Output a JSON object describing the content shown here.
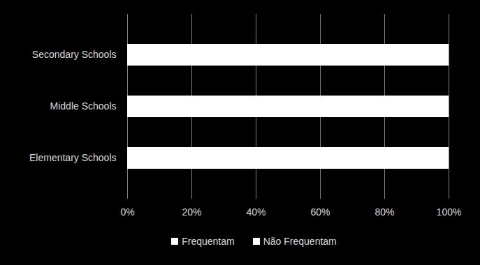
{
  "chart_data": {
    "type": "bar",
    "orientation": "horizontal",
    "stacked": true,
    "grid": true,
    "categories": [
      "Secondary Schools",
      "Middle Schools",
      "Elementary Schools"
    ],
    "series": [
      {
        "name": "Frequentam",
        "color": "#ffffff",
        "values": [
          100,
          100,
          100
        ]
      },
      {
        "name": "Não Frequentam",
        "color": "#ffffff",
        "values": [
          0,
          0,
          0
        ]
      }
    ],
    "xlim": [
      0,
      100
    ],
    "xticks": [
      {
        "value": 0,
        "label": "0%"
      },
      {
        "value": 20,
        "label": "20%"
      },
      {
        "value": 40,
        "label": "40%"
      },
      {
        "value": 60,
        "label": "60%"
      },
      {
        "value": 80,
        "label": "80%"
      },
      {
        "value": 100,
        "label": "100%"
      }
    ],
    "legend": "bottom"
  }
}
